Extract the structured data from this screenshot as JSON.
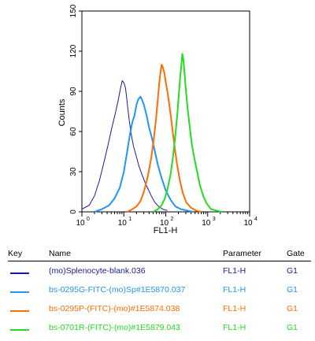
{
  "chart_data": {
    "type": "line",
    "x_scale": "log",
    "xlim": [
      1,
      10000
    ],
    "ylim": [
      0,
      150
    ],
    "xlabel": "FL1-H",
    "ylabel": "Counts",
    "x_ticks": [
      {
        "value": 1,
        "label": "10",
        "exp": "0"
      },
      {
        "value": 10,
        "label": "10",
        "exp": "1"
      },
      {
        "value": 100,
        "label": "10",
        "exp": "2"
      },
      {
        "value": 1000,
        "label": "10",
        "exp": "3"
      },
      {
        "value": 10000,
        "label": "10",
        "exp": "4"
      }
    ],
    "y_ticks": [
      0,
      30,
      60,
      90,
      120,
      150
    ],
    "grid": false,
    "series": [
      {
        "color": "#1a1aa0",
        "stroke_width": 1,
        "points": [
          [
            1,
            2
          ],
          [
            1.5,
            5
          ],
          [
            2,
            12
          ],
          [
            2.6,
            23
          ],
          [
            3.3,
            36
          ],
          [
            4.2,
            50
          ],
          [
            5.2,
            63
          ],
          [
            6.3,
            74
          ],
          [
            7.3,
            83
          ],
          [
            8.3,
            92
          ],
          [
            9.2,
            98
          ],
          [
            10.2,
            96
          ],
          [
            11,
            92
          ],
          [
            12.2,
            80
          ],
          [
            13.5,
            68
          ],
          [
            15,
            58
          ],
          [
            17,
            49
          ],
          [
            20,
            41
          ],
          [
            23,
            34
          ],
          [
            27,
            28
          ],
          [
            32,
            22
          ],
          [
            38,
            17
          ],
          [
            45,
            12
          ],
          [
            55,
            7
          ],
          [
            68,
            4
          ],
          [
            85,
            2
          ],
          [
            110,
            1
          ]
        ]
      },
      {
        "color": "#2196f3",
        "stroke_width": 2,
        "points": [
          [
            2,
            0
          ],
          [
            3,
            2
          ],
          [
            4.5,
            5
          ],
          [
            6,
            10
          ],
          [
            8,
            18
          ],
          [
            10,
            30
          ],
          [
            12,
            45
          ],
          [
            14,
            58
          ],
          [
            16,
            67
          ],
          [
            18,
            72
          ],
          [
            20,
            80
          ],
          [
            22,
            84
          ],
          [
            25,
            86
          ],
          [
            27,
            84
          ],
          [
            30,
            80
          ],
          [
            35,
            72
          ],
          [
            40,
            63
          ],
          [
            47,
            55
          ],
          [
            55,
            45
          ],
          [
            65,
            35
          ],
          [
            80,
            25
          ],
          [
            100,
            16
          ],
          [
            130,
            9
          ],
          [
            170,
            4
          ],
          [
            230,
            2
          ],
          [
            320,
            1
          ],
          [
            450,
            0
          ]
        ]
      },
      {
        "color": "#ff6d00",
        "stroke_width": 2,
        "points": [
          [
            12,
            0
          ],
          [
            16,
            2
          ],
          [
            20,
            4
          ],
          [
            25,
            8
          ],
          [
            30,
            15
          ],
          [
            37,
            26
          ],
          [
            45,
            40
          ],
          [
            52,
            55
          ],
          [
            58,
            68
          ],
          [
            63,
            80
          ],
          [
            68,
            92
          ],
          [
            72,
            100
          ],
          [
            76,
            106
          ],
          [
            80,
            110
          ],
          [
            85,
            108
          ],
          [
            92,
            104
          ],
          [
            100,
            97
          ],
          [
            112,
            88
          ],
          [
            125,
            77
          ],
          [
            140,
            65
          ],
          [
            160,
            50
          ],
          [
            185,
            36
          ],
          [
            215,
            24
          ],
          [
            255,
            14
          ],
          [
            310,
            7
          ],
          [
            400,
            3
          ],
          [
            520,
            1
          ],
          [
            700,
            0
          ]
        ]
      },
      {
        "color": "#22dd22",
        "stroke_width": 2,
        "points": [
          [
            50,
            0
          ],
          [
            65,
            2
          ],
          [
            80,
            5
          ],
          [
            95,
            10
          ],
          [
            110,
            17
          ],
          [
            130,
            28
          ],
          [
            150,
            42
          ],
          [
            170,
            58
          ],
          [
            190,
            74
          ],
          [
            205,
            88
          ],
          [
            220,
            100
          ],
          [
            235,
            110
          ],
          [
            248,
            118
          ],
          [
            262,
            114
          ],
          [
            280,
            104
          ],
          [
            300,
            92
          ],
          [
            330,
            78
          ],
          [
            370,
            64
          ],
          [
            420,
            50
          ],
          [
            480,
            40
          ],
          [
            560,
            30
          ],
          [
            650,
            20
          ],
          [
            780,
            12
          ],
          [
            950,
            6
          ],
          [
            1200,
            2
          ],
          [
            1600,
            1
          ],
          [
            2200,
            0
          ]
        ]
      }
    ]
  },
  "legend": {
    "headers": {
      "key": "Key",
      "name": "Name",
      "parameter": "Parameter",
      "gate": "Gate"
    },
    "rows": [
      {
        "name": "(mo)Splenocyte-blank.036",
        "parameter": "FL1-H",
        "gate": "G1",
        "color": "#1a1aa0"
      },
      {
        "name": "bs-0295G-FITC-(mo)Sp#1E5870.037",
        "parameter": "FL1-H",
        "gate": "G1",
        "color": "#2196f3"
      },
      {
        "name": "bs-0295P-(FITC)-(mo)#1E5874.038",
        "parameter": "FL1-H",
        "gate": "G1",
        "color": "#ff6d00"
      },
      {
        "name": "bs-0701R-(FITC)-(mo)#1E5879.043",
        "parameter": "FL1-H",
        "gate": "G1",
        "color": "#22dd22"
      }
    ]
  }
}
